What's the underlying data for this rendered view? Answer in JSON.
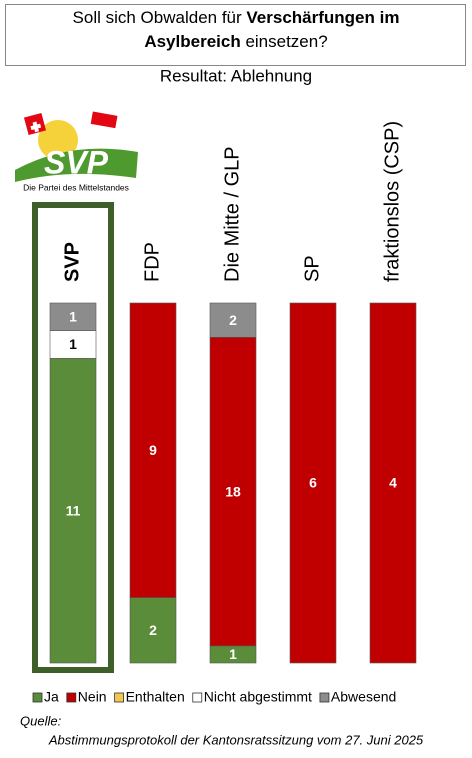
{
  "chart_data": {
    "type": "stacked_bar_percent",
    "title_parts": [
      {
        "text": "Soll sich Obwalden für ",
        "bold": false
      },
      {
        "text": "Verschärfungen im",
        "bold": true
      },
      {
        "text": "Asylbereich",
        "bold": true
      },
      {
        "text": " einsetzen?",
        "bold": false
      }
    ],
    "subtitle": "Resultat: Ablehnung",
    "logo": {
      "text": "SVP",
      "tagline": "Die Partei des Mittelstandes"
    },
    "highlight_index": 0,
    "categories": [
      "SVP",
      "FDP",
      "Die Mitte / GLP",
      "SP",
      "fraktionslos (CSP)"
    ],
    "series": [
      {
        "name": "Ja",
        "color": "#5b8c3a",
        "values": [
          11,
          2,
          1,
          0,
          0
        ]
      },
      {
        "name": "Nein",
        "color": "#c00000",
        "values": [
          0,
          9,
          18,
          6,
          4
        ]
      },
      {
        "name": "Enthalten",
        "color": "#f3c650",
        "values": [
          0,
          0,
          0,
          0,
          0
        ]
      },
      {
        "name": "Nicht abgestimmt",
        "color": "#ffffff",
        "values": [
          1,
          0,
          0,
          0,
          0
        ]
      },
      {
        "name": "Abwesend",
        "color": "#8c8c8c",
        "values": [
          1,
          0,
          2,
          0,
          0
        ]
      }
    ],
    "source_label": "Quelle:",
    "source": "Abstimmungsprotokoll der Kantonsratssitzung vom 27. Juni 2025"
  }
}
